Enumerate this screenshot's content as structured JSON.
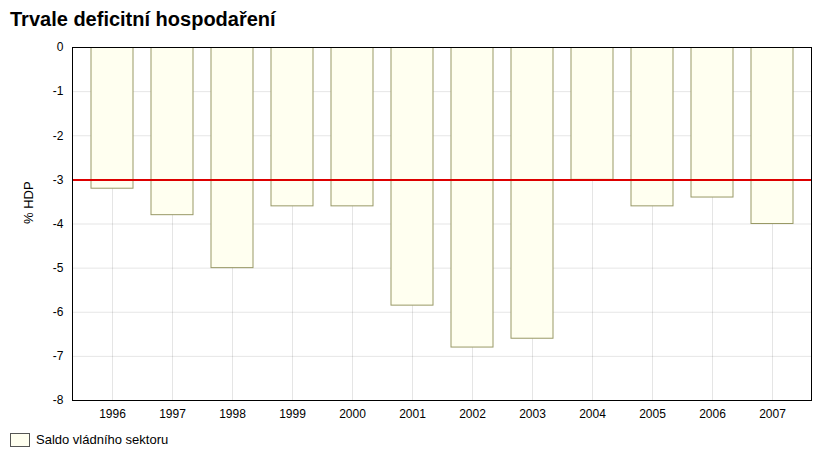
{
  "chart_data": {
    "type": "bar",
    "title": "Trvale deficitní hospodaření",
    "ylabel": "% HDP",
    "categories": [
      "1996",
      "1997",
      "1998",
      "1999",
      "2000",
      "2001",
      "2002",
      "2003",
      "2004",
      "2005",
      "2006",
      "2007"
    ],
    "series": [
      {
        "name": "Saldo vládního sektoru",
        "color": "#FFFFF0",
        "values": [
          -3.2,
          -3.8,
          -5.0,
          -3.6,
          -3.6,
          -5.85,
          -6.8,
          -6.6,
          -3.0,
          -3.6,
          -3.4,
          -4.0
        ]
      }
    ],
    "reference_line": {
      "value": -3.0,
      "color": "#DD0000"
    },
    "ylim": [
      -8,
      0
    ],
    "yticks": [
      0,
      -1,
      -2,
      -3,
      -4,
      -5,
      -6,
      -7,
      -8
    ],
    "grid": true,
    "legend": "lower left"
  }
}
